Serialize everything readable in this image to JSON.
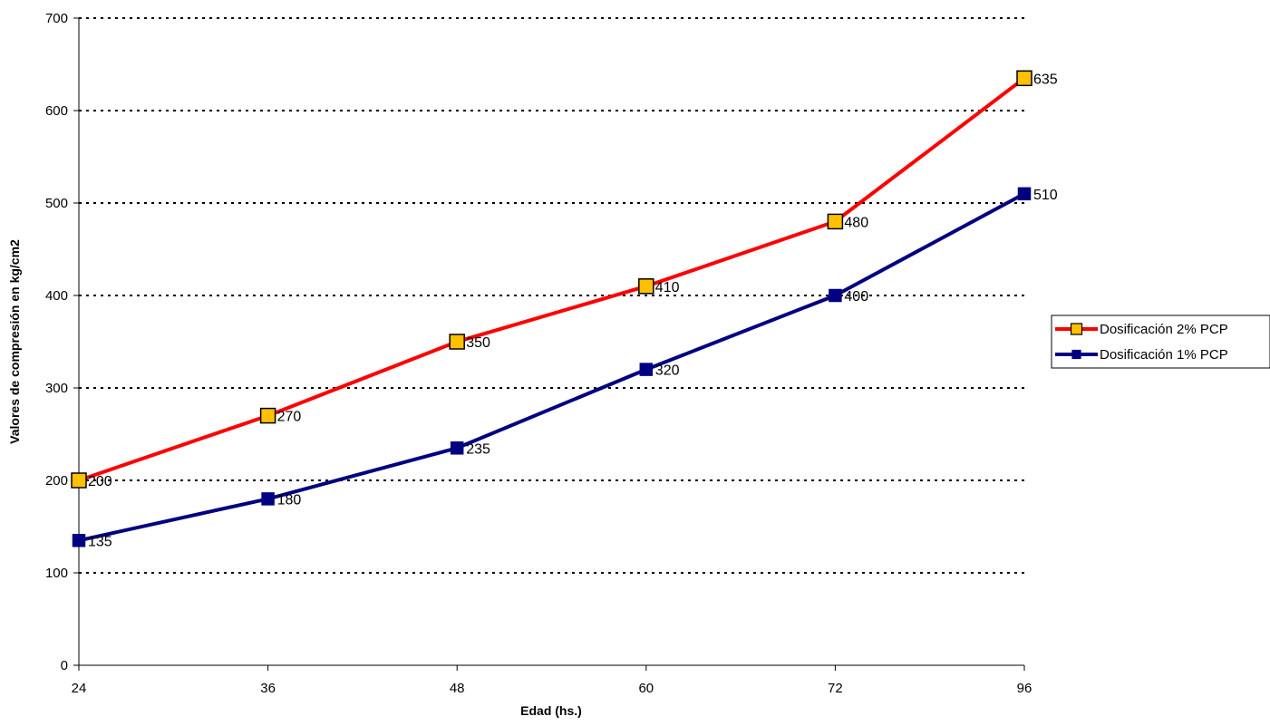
{
  "chart_data": {
    "type": "line",
    "categories": [
      "24",
      "36",
      "48",
      "60",
      "72",
      "96"
    ],
    "series": [
      {
        "name": "Dosificación 2% PCP",
        "values": [
          200,
          270,
          350,
          410,
          480,
          635
        ],
        "line_color": "#ff0000",
        "marker_fill": "#ffc000",
        "marker_stroke": "#000000",
        "marker": "square"
      },
      {
        "name": "Dosificación 1% PCP",
        "values": [
          135,
          180,
          235,
          320,
          400,
          510
        ],
        "line_color": "#000080",
        "marker_fill": "#000080",
        "marker_stroke": "#000080",
        "marker": "square"
      }
    ],
    "xlabel": "Edad (hs.)",
    "ylabel": "Valores de compresión en kg/cm2",
    "ylim": [
      0,
      700
    ],
    "yticks": [
      0,
      100,
      200,
      300,
      400,
      500,
      600,
      700
    ],
    "grid": "horizontal dotted",
    "legend_position": "right",
    "data_labels": true
  }
}
